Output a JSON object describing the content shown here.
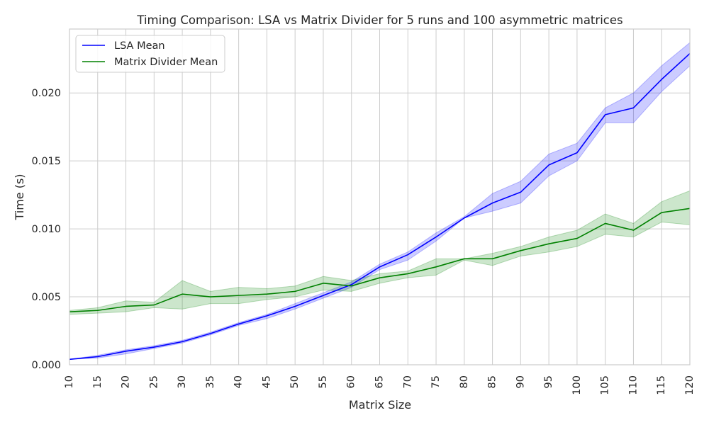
{
  "chart_data": {
    "type": "line",
    "title": "Timing Comparison: LSA vs Matrix Divider for 5 runs and 100 asymmetric matrices",
    "xlabel": "Matrix Size",
    "ylabel": "Time (s)",
    "x": [
      10,
      15,
      20,
      25,
      30,
      35,
      40,
      45,
      50,
      55,
      60,
      65,
      70,
      75,
      80,
      85,
      90,
      95,
      100,
      105,
      110,
      115,
      120
    ],
    "xticks": [
      "10",
      "15",
      "20",
      "25",
      "30",
      "35",
      "40",
      "45",
      "50",
      "55",
      "60",
      "65",
      "70",
      "75",
      "80",
      "85",
      "90",
      "95",
      "100",
      "105",
      "110",
      "115",
      "120"
    ],
    "xlim": [
      10,
      120
    ],
    "ylim": [
      0,
      0.0247
    ],
    "yticks": [
      0,
      0.005,
      0.01,
      0.015,
      0.02
    ],
    "ytick_labels": [
      "0.000",
      "0.005",
      "0.010",
      "0.015",
      "0.020"
    ],
    "grid": true,
    "legend_position": "top-left",
    "series": [
      {
        "name": "LSA Mean",
        "color": "#0000ff",
        "band_color": "#0000ff",
        "values": [
          0.0004,
          0.0006,
          0.001,
          0.0013,
          0.0017,
          0.0023,
          0.003,
          0.0036,
          0.0043,
          0.0051,
          0.0059,
          0.0072,
          0.0081,
          0.0094,
          0.0108,
          0.0119,
          0.0127,
          0.0147,
          0.0156,
          0.0184,
          0.0189,
          0.021,
          0.0229
        ],
        "lower": [
          0.0004,
          0.0005,
          0.0008,
          0.0012,
          0.0016,
          0.0022,
          0.0029,
          0.0034,
          0.0041,
          0.0049,
          0.0057,
          0.007,
          0.0077,
          0.0091,
          0.0108,
          0.0113,
          0.0119,
          0.0139,
          0.015,
          0.0178,
          0.0178,
          0.0201,
          0.022
        ],
        "upper": [
          0.0004,
          0.0007,
          0.0011,
          0.0014,
          0.0018,
          0.0024,
          0.0031,
          0.0037,
          0.0045,
          0.0053,
          0.0061,
          0.0074,
          0.0083,
          0.0097,
          0.0109,
          0.0126,
          0.0135,
          0.0155,
          0.0163,
          0.0189,
          0.02,
          0.022,
          0.0237
        ]
      },
      {
        "name": "Matrix Divider Mean",
        "color": "#008000",
        "band_color": "#008000",
        "values": [
          0.0039,
          0.004,
          0.0043,
          0.0044,
          0.0052,
          0.005,
          0.0051,
          0.0052,
          0.0054,
          0.006,
          0.0058,
          0.0064,
          0.0067,
          0.0072,
          0.0078,
          0.0078,
          0.0084,
          0.0089,
          0.0093,
          0.0104,
          0.0099,
          0.0112,
          0.0115
        ],
        "lower": [
          0.0037,
          0.0038,
          0.0039,
          0.0042,
          0.0041,
          0.0045,
          0.0045,
          0.0048,
          0.005,
          0.0055,
          0.0054,
          0.006,
          0.0064,
          0.0066,
          0.0077,
          0.0073,
          0.008,
          0.0083,
          0.0087,
          0.0096,
          0.0094,
          0.0105,
          0.0103
        ],
        "upper": [
          0.004,
          0.0042,
          0.0047,
          0.0046,
          0.0062,
          0.0054,
          0.0057,
          0.0056,
          0.0058,
          0.0065,
          0.0062,
          0.0067,
          0.0069,
          0.0078,
          0.0078,
          0.0082,
          0.0087,
          0.0094,
          0.0099,
          0.0111,
          0.0104,
          0.012,
          0.0128
        ]
      }
    ]
  }
}
